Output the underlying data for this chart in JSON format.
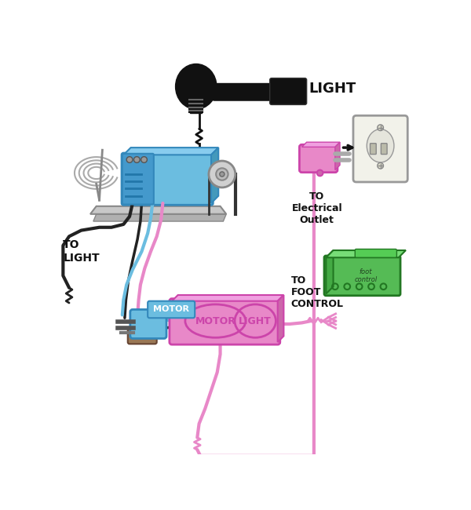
{
  "background": "#ffffff",
  "figsize": [
    6.0,
    6.5
  ],
  "dpi": 100,
  "xlim": [
    0,
    600
  ],
  "ylim": [
    0,
    650
  ],
  "colors": {
    "blue": "#6bbde0",
    "blue_dark": "#3388bb",
    "pink": "#e888c8",
    "pink_dark": "#cc44aa",
    "green": "#55bb55",
    "green_dark": "#227722",
    "black": "#111111",
    "gray": "#888888",
    "light_gray": "#cccccc",
    "outlet_bg": "#f0f0e8",
    "brown": "#886644",
    "wire_black": "#222222",
    "wire_blue": "#6bbde0",
    "wire_pink": "#e888c8",
    "purple_dark": "#8844aa"
  },
  "labels": {
    "light": "LIGHT",
    "to_light": "TO\nLIGHT",
    "motor_tag": "MOTOR",
    "motor_inner": "MOTOR",
    "light_inner": "LIGHT",
    "to_foot_control": "TO\nFO OT\nCONTROL",
    "to_electrical_outlet": "TO\nElectrical\nOutlet"
  }
}
